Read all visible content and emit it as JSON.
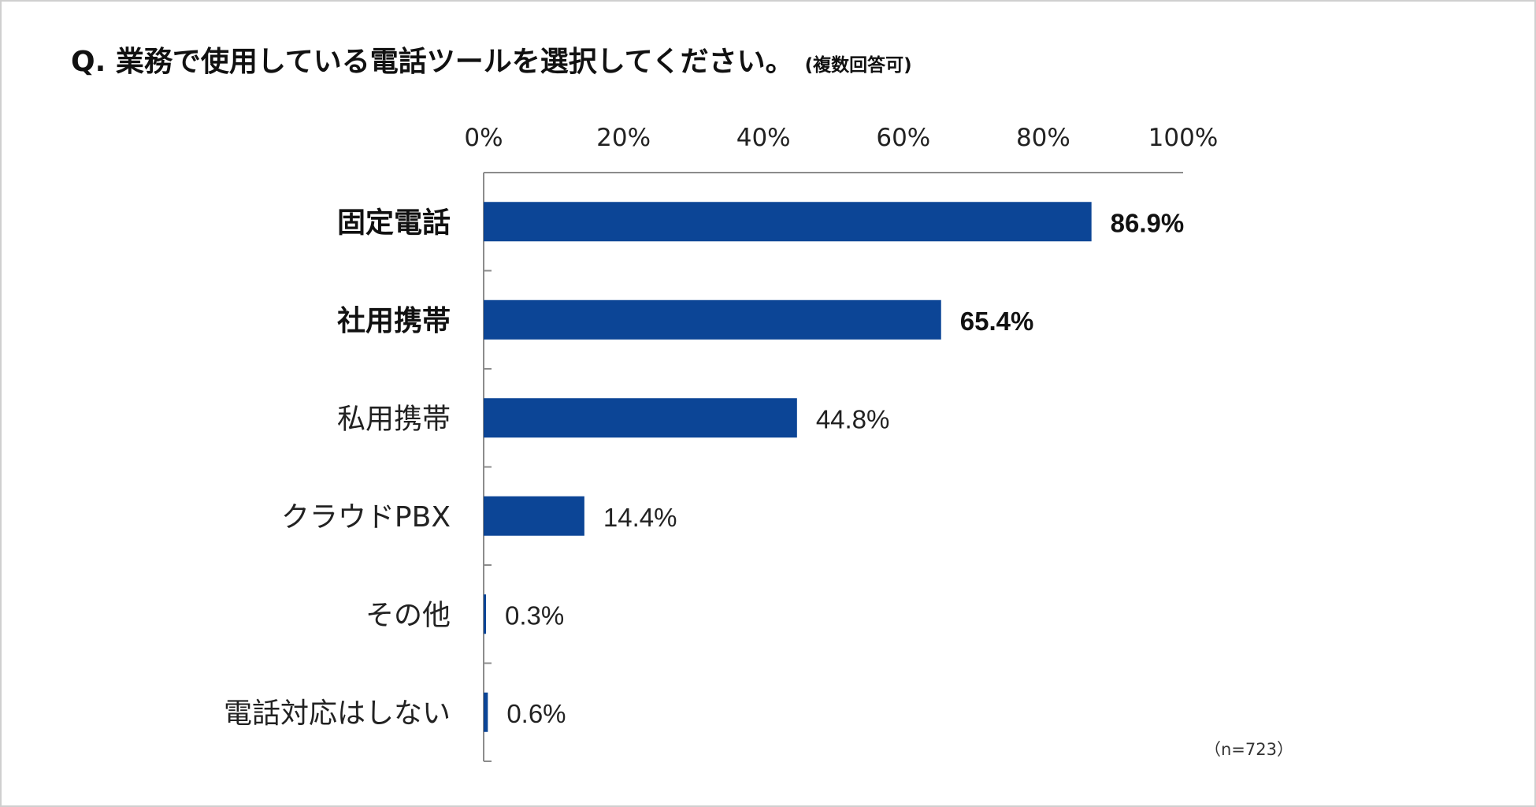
{
  "title": "Q. 業務で使用している電話ツールを選択してください。",
  "title_note": "(複数回答可)",
  "sample_note": "（n=723）",
  "colors": {
    "bar": "#0c4596",
    "axis": "#8c8c8c"
  },
  "chart_data": {
    "type": "bar",
    "orientation": "horizontal",
    "title": "Q. 業務で使用している電話ツールを選択してください。(複数回答可)",
    "categories": [
      "固定電話",
      "社用携帯",
      "私用携帯",
      "クラウドPBX",
      "その他",
      "電話対応はしない"
    ],
    "values": [
      86.9,
      65.4,
      44.8,
      14.4,
      0.3,
      0.6
    ],
    "value_labels": [
      "86.9%",
      "65.4%",
      "44.8%",
      "14.4%",
      "0.3%",
      "0.6%"
    ],
    "emphasized": [
      true,
      true,
      false,
      false,
      false,
      false
    ],
    "xlim": [
      0,
      100
    ],
    "xticks": [
      0,
      20,
      40,
      60,
      80,
      100
    ],
    "xtick_labels": [
      "0%",
      "20%",
      "40%",
      "60%",
      "80%",
      "100%"
    ],
    "axis_position": "top",
    "xlabel": "",
    "ylabel": "",
    "grid": false,
    "legend": "none"
  }
}
